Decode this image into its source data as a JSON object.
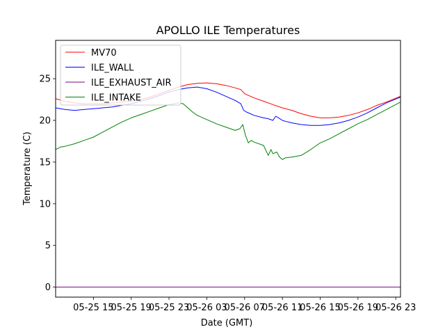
{
  "chart_data": {
    "type": "line",
    "title": "APOLLO ILE Temperatures",
    "xlabel": "Date (GMT)",
    "ylabel": "Temperature (C)",
    "x_unit": "hours since 05-25 11:00 GMT",
    "xlim": [
      0,
      36.5
    ],
    "ylim": [
      -1.2,
      29.6
    ],
    "yticks": [
      0,
      5,
      10,
      15,
      20,
      25
    ],
    "xticks": [
      {
        "x": 4,
        "label": "05-25 15"
      },
      {
        "x": 8,
        "label": "05-25 19"
      },
      {
        "x": 12,
        "label": "05-25 23"
      },
      {
        "x": 16,
        "label": "05-26 03"
      },
      {
        "x": 20,
        "label": "05-26 07"
      },
      {
        "x": 24,
        "label": "05-26 11"
      },
      {
        "x": 28,
        "label": "05-26 15"
      },
      {
        "x": 32,
        "label": "05-26 19"
      },
      {
        "x": 36,
        "label": "05-26 23"
      }
    ],
    "legend_position": "top-left",
    "grid": false,
    "series": [
      {
        "name": "MV70",
        "color": "#ff0000",
        "x": [
          0,
          1,
          2,
          3,
          4,
          5,
          6,
          7,
          8,
          9,
          10,
          11,
          12,
          13,
          14,
          15,
          16,
          17,
          18,
          19,
          19.6,
          20,
          21,
          22,
          23,
          24,
          25,
          26,
          27,
          28,
          29,
          30,
          31,
          32,
          33,
          34,
          35,
          36.5
        ],
        "values": [
          22.6,
          22.3,
          22.1,
          22.0,
          22.0,
          22.0,
          22.1,
          22.2,
          22.3,
          22.5,
          22.8,
          23.2,
          23.6,
          24.0,
          24.3,
          24.45,
          24.5,
          24.4,
          24.2,
          23.9,
          23.7,
          23.2,
          22.7,
          22.3,
          21.9,
          21.5,
          21.2,
          20.8,
          20.5,
          20.3,
          20.3,
          20.4,
          20.6,
          20.9,
          21.3,
          21.8,
          22.2,
          22.9
        ]
      },
      {
        "name": "ILE_WALL",
        "color": "#0000ff",
        "x": [
          0,
          1,
          2,
          3,
          4,
          5,
          6,
          7,
          8,
          9,
          10,
          11,
          12,
          13,
          14,
          15,
          16,
          17,
          18,
          19,
          19.6,
          19.9,
          20.2,
          21,
          22,
          22.5,
          23,
          23.3,
          23.6,
          24,
          24.3,
          25,
          26,
          27,
          28,
          29,
          30,
          31,
          32,
          33,
          34,
          35,
          36.5
        ],
        "values": [
          21.5,
          21.3,
          21.2,
          21.3,
          21.4,
          21.5,
          21.6,
          21.8,
          22.0,
          22.3,
          22.6,
          23.0,
          23.4,
          23.7,
          23.9,
          24.0,
          23.8,
          23.4,
          22.9,
          22.4,
          22.0,
          21.2,
          21.0,
          20.6,
          20.3,
          20.2,
          20.0,
          20.5,
          20.3,
          20.0,
          19.9,
          19.7,
          19.5,
          19.4,
          19.4,
          19.5,
          19.7,
          20.0,
          20.4,
          20.9,
          21.5,
          22.1,
          22.8
        ]
      },
      {
        "name": "ILE_EXHAUST_AIR",
        "color": "#800080",
        "x": [
          0,
          36.5
        ],
        "values": [
          0,
          0
        ]
      },
      {
        "name": "ILE_INTAKE",
        "color": "#008000",
        "x": [
          0,
          0.5,
          1,
          2,
          3,
          4,
          5,
          6,
          7,
          8,
          9,
          10,
          11,
          12,
          13,
          13.5,
          14,
          14.5,
          15,
          16,
          17,
          18,
          19,
          19.5,
          19.8,
          20.1,
          20.4,
          20.7,
          21,
          22,
          22.5,
          22.8,
          23.0,
          23.4,
          23.7,
          24.0,
          24.3,
          25,
          26,
          27,
          28,
          29,
          30,
          31,
          32,
          33,
          34,
          35,
          36.5
        ],
        "values": [
          16.5,
          16.8,
          16.9,
          17.2,
          17.6,
          18.0,
          18.6,
          19.2,
          19.8,
          20.3,
          20.7,
          21.1,
          21.5,
          21.9,
          22.1,
          22.0,
          21.5,
          21.0,
          20.6,
          20.1,
          19.6,
          19.2,
          18.8,
          19.0,
          19.5,
          18.2,
          17.3,
          17.6,
          17.4,
          17.0,
          15.8,
          16.5,
          16.0,
          16.2,
          15.6,
          15.3,
          15.5,
          15.6,
          15.8,
          16.5,
          17.3,
          17.8,
          18.4,
          19.0,
          19.6,
          20.1,
          20.7,
          21.3,
          22.2
        ]
      }
    ]
  }
}
